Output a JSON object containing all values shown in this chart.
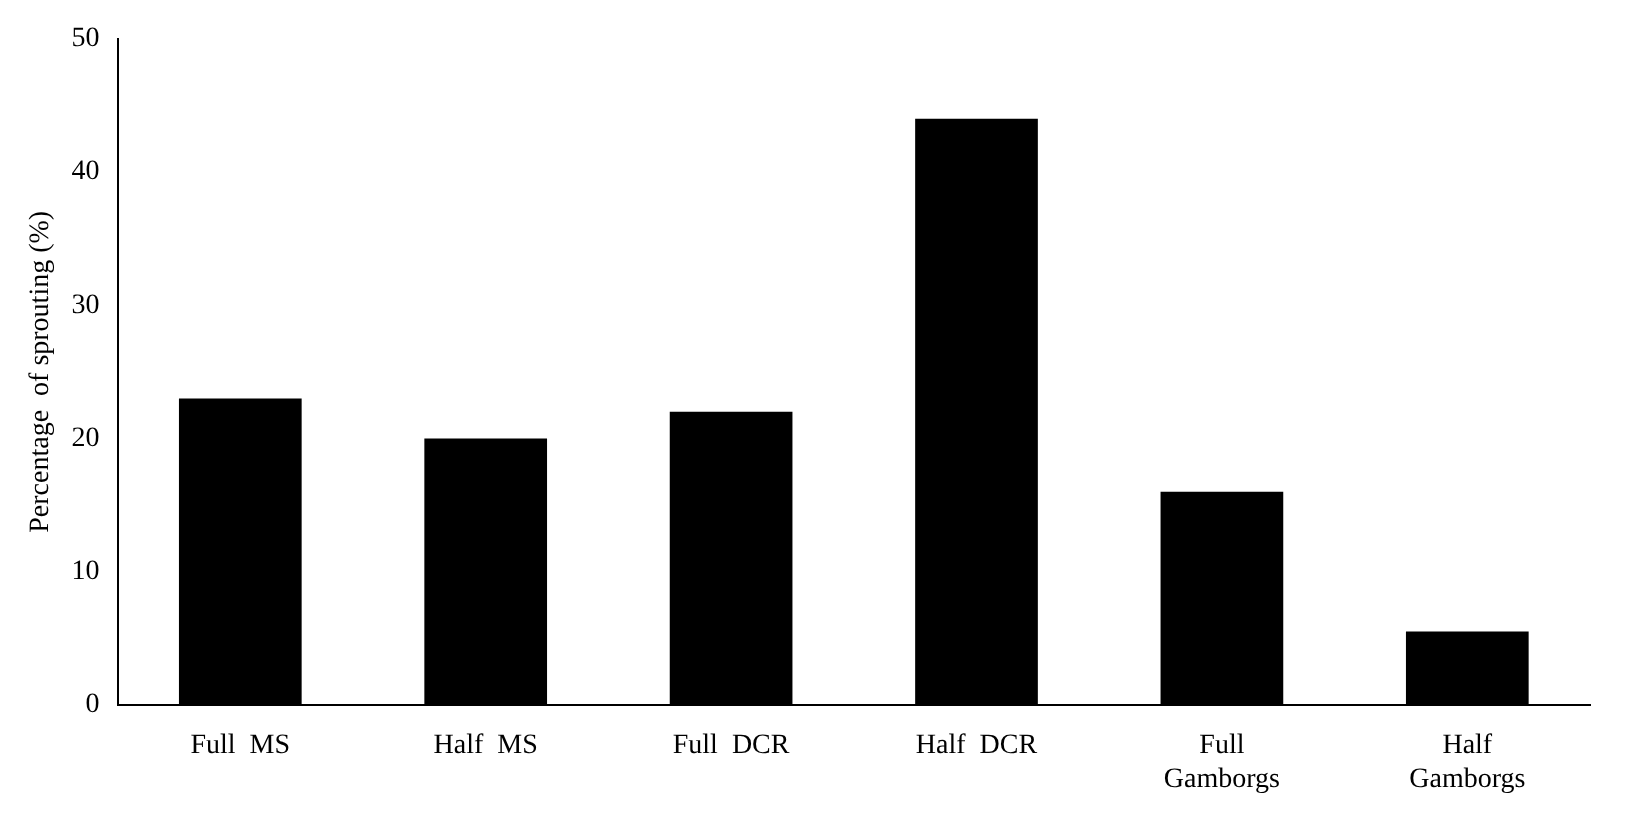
{
  "chart_data": {
    "type": "bar",
    "ylabel": "Percentage  of sprouting (%)",
    "categories": [
      "Full  MS",
      "Half  MS",
      "Full  DCR",
      "Half  DCR",
      "Full Gamborgs",
      "Half Gamborgs"
    ],
    "values": [
      23,
      20,
      22,
      44,
      16,
      5.5
    ],
    "color": "#000000",
    "ylim": [
      0,
      50
    ],
    "yticks": [
      0,
      10,
      20,
      30,
      40,
      50
    ],
    "grid": false,
    "legend": false
  }
}
